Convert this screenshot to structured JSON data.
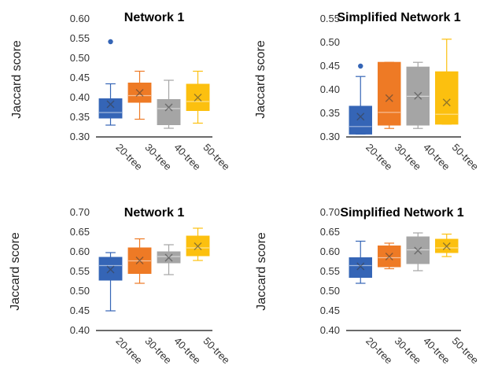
{
  "chart_data": [
    {
      "type": "box",
      "title": "Network 1",
      "ylabel": "Jaccard score",
      "ylim": [
        0.3,
        0.6
      ],
      "ytick_labels": [
        "0.30",
        "0.35",
        "0.40",
        "0.45",
        "0.50",
        "0.55",
        "0.60"
      ],
      "categories": [
        "20-tree",
        "30-tree",
        "40-tree",
        "50-tree"
      ],
      "colors": [
        "#3565b6",
        "#ee7a25",
        "#a5a5a5",
        "#fcc00f"
      ],
      "grid": false,
      "boxes": [
        {
          "whisker_low": 0.33,
          "q1": 0.348,
          "median": 0.362,
          "q3": 0.397,
          "whisker_high": 0.435,
          "mean": 0.383,
          "outliers": [
            0.542
          ]
        },
        {
          "whisker_low": 0.345,
          "q1": 0.388,
          "median": 0.405,
          "q3": 0.437,
          "whisker_high": 0.467,
          "mean": 0.412,
          "outliers": []
        },
        {
          "whisker_low": 0.322,
          "q1": 0.331,
          "median": 0.372,
          "q3": 0.395,
          "whisker_high": 0.444,
          "mean": 0.375,
          "outliers": []
        },
        {
          "whisker_low": 0.335,
          "q1": 0.367,
          "median": 0.39,
          "q3": 0.434,
          "whisker_high": 0.467,
          "mean": 0.4,
          "outliers": []
        }
      ]
    },
    {
      "type": "box",
      "title": "Simplified Network 1",
      "ylabel": "Jaccard score",
      "ylim": [
        0.3,
        0.55
      ],
      "ytick_labels": [
        "0.30",
        "0.35",
        "0.40",
        "0.45",
        "0.50",
        "0.55"
      ],
      "categories": [
        "20-tree",
        "30-tree",
        "40-tree",
        "50-tree"
      ],
      "colors": [
        "#3565b6",
        "#ee7a25",
        "#a5a5a5",
        "#fcc00f"
      ],
      "grid": false,
      "boxes": [
        {
          "whisker_low": 0.306,
          "q1": 0.306,
          "median": 0.322,
          "q3": 0.365,
          "whisker_high": 0.428,
          "mean": 0.343,
          "outliers": [
            0.45
          ]
        },
        {
          "whisker_low": 0.318,
          "q1": 0.325,
          "median": 0.352,
          "q3": 0.458,
          "whisker_high": 0.458,
          "mean": 0.382,
          "outliers": []
        },
        {
          "whisker_low": 0.318,
          "q1": 0.325,
          "median": 0.386,
          "q3": 0.448,
          "whisker_high": 0.458,
          "mean": 0.387,
          "outliers": []
        },
        {
          "whisker_low": 0.327,
          "q1": 0.327,
          "median": 0.348,
          "q3": 0.438,
          "whisker_high": 0.507,
          "mean": 0.373,
          "outliers": []
        }
      ]
    },
    {
      "type": "box",
      "title": "Network 1",
      "ylabel": "Jaccard score",
      "ylim": [
        0.4,
        0.7
      ],
      "ytick_labels": [
        "0.40",
        "0.45",
        "0.50",
        "0.55",
        "0.60",
        "0.65",
        "0.70"
      ],
      "categories": [
        "20-tree",
        "30-tree",
        "40-tree",
        "50-tree"
      ],
      "colors": [
        "#3565b6",
        "#ee7a25",
        "#a5a5a5",
        "#fcc00f"
      ],
      "grid": false,
      "boxes": [
        {
          "whisker_low": 0.45,
          "q1": 0.528,
          "median": 0.565,
          "q3": 0.586,
          "whisker_high": 0.598,
          "mean": 0.555,
          "outliers": []
        },
        {
          "whisker_low": 0.52,
          "q1": 0.545,
          "median": 0.577,
          "q3": 0.61,
          "whisker_high": 0.633,
          "mean": 0.578,
          "outliers": []
        },
        {
          "whisker_low": 0.542,
          "q1": 0.572,
          "median": 0.588,
          "q3": 0.6,
          "whisker_high": 0.618,
          "mean": 0.585,
          "outliers": []
        },
        {
          "whisker_low": 0.578,
          "q1": 0.59,
          "median": 0.61,
          "q3": 0.64,
          "whisker_high": 0.66,
          "mean": 0.614,
          "outliers": []
        }
      ]
    },
    {
      "type": "box",
      "title": "Simplified Network 1",
      "ylabel": "Jaccard score",
      "ylim": [
        0.4,
        0.7
      ],
      "ytick_labels": [
        "0.40",
        "0.45",
        "0.50",
        "0.55",
        "0.60",
        "0.65",
        "0.70"
      ],
      "categories": [
        "20-tree",
        "30-tree",
        "40-tree",
        "50-tree"
      ],
      "colors": [
        "#3565b6",
        "#ee7a25",
        "#a5a5a5",
        "#fcc00f"
      ],
      "grid": false,
      "boxes": [
        {
          "whisker_low": 0.52,
          "q1": 0.535,
          "median": 0.565,
          "q3": 0.585,
          "whisker_high": 0.627,
          "mean": 0.563,
          "outliers": []
        },
        {
          "whisker_low": 0.557,
          "q1": 0.562,
          "median": 0.585,
          "q3": 0.615,
          "whisker_high": 0.622,
          "mean": 0.588,
          "outliers": []
        },
        {
          "whisker_low": 0.552,
          "q1": 0.57,
          "median": 0.605,
          "q3": 0.638,
          "whisker_high": 0.648,
          "mean": 0.603,
          "outliers": []
        },
        {
          "whisker_low": 0.588,
          "q1": 0.598,
          "median": 0.61,
          "q3": 0.632,
          "whisker_high": 0.645,
          "mean": 0.614,
          "outliers": []
        }
      ]
    }
  ]
}
